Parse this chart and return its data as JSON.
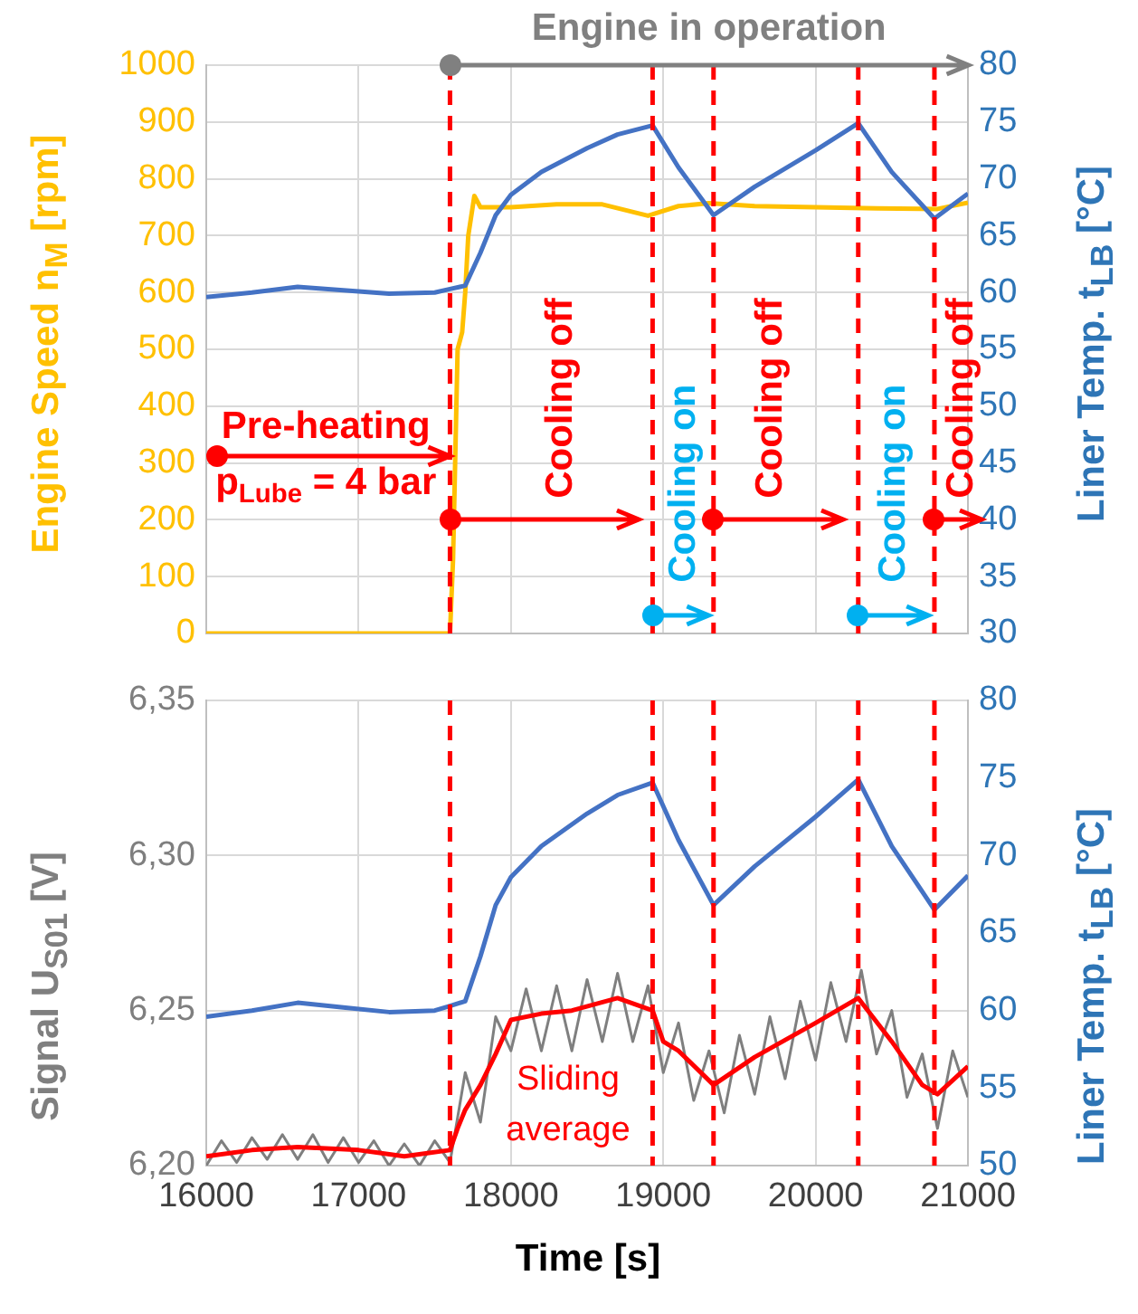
{
  "chart_data": [
    {
      "type": "line",
      "ylabel": "Engine Speed n$_{M}$ [rpm]",
      "y2label": "Liner Temp. t$_{LB}$ [°C]",
      "xlim": [
        16000,
        21000
      ],
      "xticks": [
        16000,
        17000,
        18000,
        19000,
        20000,
        21000
      ],
      "ylim": [
        0,
        1000
      ],
      "yticks": [
        0,
        100,
        200,
        300,
        400,
        500,
        600,
        700,
        800,
        900,
        1000
      ],
      "y2lim": [
        30,
        80
      ],
      "y2ticks": [
        30,
        35,
        40,
        45,
        50,
        55,
        60,
        65,
        70,
        75,
        80
      ],
      "tick_labels": "y",
      "grid": true,
      "legend": false,
      "marker": "none",
      "line_style": "solid",
      "series": [
        {
          "color": "#ffc000",
          "x": [
            16000,
            17000,
            17600,
            17620,
            17650,
            17680,
            17700,
            17720,
            17760,
            17800,
            18000,
            18300,
            18600,
            18900,
            19100,
            19300,
            19600,
            20000,
            20400,
            20800,
            21000
          ],
          "values": [
            0,
            0,
            0,
            130,
            500,
            530,
            600,
            700,
            770,
            750,
            750,
            755,
            755,
            735,
            752,
            757,
            752,
            750,
            748,
            747,
            758
          ]
        },
        {
          "color": "#4472c4",
          "axis": "y2",
          "x": [
            16000,
            16300,
            16600,
            16900,
            17200,
            17500,
            17600,
            17700,
            17800,
            17900,
            18000,
            18200,
            18500,
            18700,
            18930,
            19100,
            19330,
            19600,
            20000,
            20280,
            20500,
            20780,
            21000
          ],
          "values": [
            59.6,
            60,
            60.5,
            60.2,
            59.9,
            60,
            60.3,
            60.6,
            63.5,
            66.8,
            68.6,
            70.6,
            72.7,
            73.9,
            74.7,
            71,
            66.8,
            69.3,
            72.5,
            74.9,
            70.6,
            66.5,
            68.7
          ]
        }
      ],
      "ref_lines": [
        {
          "axis": "x",
          "value": 17600,
          "color": "#ff0000",
          "line_style": "dashed"
        },
        {
          "axis": "x",
          "value": 18930,
          "color": "#ff0000",
          "line_style": "dashed"
        },
        {
          "axis": "x",
          "value": 19330,
          "color": "#ff0000",
          "line_style": "dashed"
        },
        {
          "axis": "x",
          "value": 20280,
          "color": "#ff0000",
          "line_style": "dashed"
        },
        {
          "axis": "x",
          "value": 20780,
          "color": "#ff0000",
          "line_style": "dashed"
        }
      ],
      "annotations": [
        "Engine in operation",
        "Pre-heating",
        "p$_{Lube}$ = 4 bar",
        "Cooling off",
        {
          "text": "Cooling on",
          "x": 18930,
          "y": 200
        },
        "Cooling off",
        {
          "text": "Cooling on",
          "x": 20280,
          "y": 200
        },
        "Cooling off"
      ]
    },
    {
      "type": "line",
      "xlabel": "Time [s]",
      "ylabel": "Signal U$_{S01}$ [V]",
      "y2label": "Liner Temp. t$_{LB}$ [°C]",
      "xlim": [
        16000,
        21000
      ],
      "xticks": [
        16000,
        17000,
        18000,
        19000,
        20000,
        21000
      ],
      "ylim": [
        6.2,
        6.35
      ],
      "yticks": [
        {
          "value": 6.2,
          "label": "6,20"
        },
        {
          "value": 6.25,
          "label": "6,25"
        },
        {
          "value": 6.3,
          "label": "6,30"
        },
        {
          "value": 6.35,
          "label": "6,35"
        }
      ],
      "y2lim": [
        50,
        80
      ],
      "y2ticks": [
        50,
        55,
        60,
        65,
        70,
        75,
        80
      ],
      "grid": true,
      "legend": false,
      "marker": "none",
      "line_style": "solid",
      "series": [
        {
          "color": "#7f7f7f",
          "x": [
            16000,
            16100,
            16200,
            16300,
            16400,
            16500,
            16600,
            16700,
            16800,
            16900,
            17000,
            17100,
            17200,
            17300,
            17400,
            17500,
            17600,
            17700,
            17800,
            17900,
            18000,
            18100,
            18200,
            18300,
            18400,
            18500,
            18600,
            18700,
            18800,
            18900,
            19000,
            19100,
            19200,
            19300,
            19400,
            19500,
            19600,
            19700,
            19800,
            19900,
            20000,
            20100,
            20200,
            20300,
            20400,
            20500,
            20600,
            20700,
            20800,
            20900,
            21000
          ],
          "values": [
            6.2,
            6.208,
            6.201,
            6.209,
            6.202,
            6.21,
            6.202,
            6.21,
            6.201,
            6.209,
            6.201,
            6.208,
            6.2,
            6.207,
            6.2,
            6.208,
            6.201,
            6.23,
            6.214,
            6.248,
            6.237,
            6.257,
            6.237,
            6.258,
            6.237,
            6.26,
            6.24,
            6.262,
            6.24,
            6.258,
            6.23,
            6.246,
            6.221,
            6.237,
            6.217,
            6.242,
            6.223,
            6.248,
            6.228,
            6.253,
            6.234,
            6.259,
            6.24,
            6.263,
            6.236,
            6.25,
            6.222,
            6.236,
            6.212,
            6.237,
            6.222
          ]
        },
        {
          "name": "Sliding average",
          "color": "#ff0000",
          "x": [
            16000,
            16300,
            16600,
            17000,
            17300,
            17600,
            17650,
            17700,
            17800,
            17900,
            18000,
            18200,
            18400,
            18700,
            18930,
            19000,
            19100,
            19330,
            19600,
            20000,
            20280,
            20500,
            20700,
            20800,
            21000
          ],
          "values": [
            6.203,
            6.205,
            6.206,
            6.205,
            6.203,
            6.205,
            6.212,
            6.218,
            6.226,
            6.236,
            6.247,
            6.249,
            6.25,
            6.254,
            6.25,
            6.24,
            6.237,
            6.226,
            6.235,
            6.246,
            6.254,
            6.24,
            6.226,
            6.223,
            6.232
          ]
        },
        {
          "color": "#4472c4",
          "axis": "y2",
          "x": [
            16000,
            16300,
            16600,
            16900,
            17200,
            17500,
            17600,
            17700,
            17800,
            17900,
            18000,
            18200,
            18500,
            18700,
            18930,
            19100,
            19330,
            19600,
            20000,
            20280,
            20500,
            20780,
            21000
          ],
          "values": [
            59.6,
            60,
            60.5,
            60.2,
            59.9,
            60,
            60.3,
            60.6,
            63.5,
            66.8,
            68.6,
            70.6,
            72.7,
            73.9,
            74.7,
            71,
            66.8,
            69.3,
            72.5,
            74.9,
            70.6,
            66.5,
            68.7
          ]
        }
      ],
      "ref_lines": [
        {
          "axis": "x",
          "value": 17600,
          "color": "#ff0000",
          "line_style": "dashed"
        },
        {
          "axis": "x",
          "value": 18930,
          "color": "#ff0000",
          "line_style": "dashed"
        },
        {
          "axis": "x",
          "value": 19330,
          "color": "#ff0000",
          "line_style": "dashed"
        },
        {
          "axis": "x",
          "value": 20280,
          "color": "#ff0000",
          "line_style": "dashed"
        },
        {
          "axis": "x",
          "value": 20780,
          "color": "#ff0000",
          "line_style": "dashed"
        }
      ]
    }
  ]
}
